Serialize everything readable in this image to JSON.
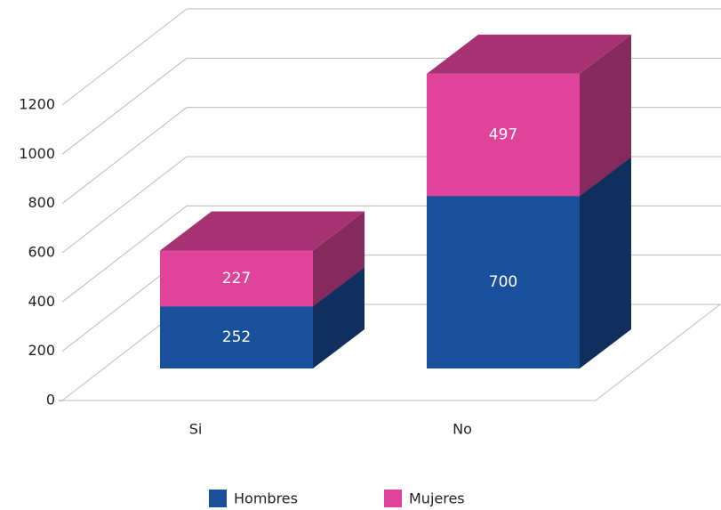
{
  "chart_data": {
    "type": "bar3d_stacked",
    "categories": [
      "Si",
      "No"
    ],
    "series": [
      {
        "name": "Hombres",
        "color": "#1a4f9c",
        "values": [
          252,
          700
        ]
      },
      {
        "name": "Mujeres",
        "color": "#e0449a",
        "values": [
          227,
          497
        ]
      }
    ],
    "ylim": [
      0,
      1200
    ],
    "yticks": [
      0,
      200,
      400,
      600,
      800,
      1000,
      1200
    ],
    "grid": true,
    "legend": "bottom"
  }
}
